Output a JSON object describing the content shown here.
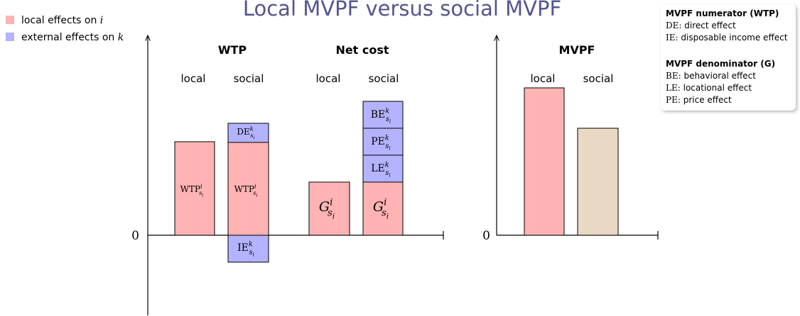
{
  "title": "Local MVPF versus social MVPF",
  "legend": [
    {
      "text": "local effects on",
      "var": "i"
    },
    {
      "text": "external effects on",
      "var": "k"
    }
  ],
  "groups": [
    {
      "title": "WTP",
      "columns": [
        "local",
        "social"
      ]
    },
    {
      "title": "Net cost",
      "columns": [
        "local",
        "social"
      ]
    },
    {
      "title": "MVPF",
      "columns": [
        "local",
        "social"
      ]
    }
  ],
  "axis_zero": [
    "0",
    "0"
  ],
  "boxes": {
    "wtp_local": {
      "base": "WTP",
      "sup": "i",
      "sub": "s",
      "subsub": "i"
    },
    "wtp_social": {
      "base": "WTP",
      "sup": "i",
      "sub": "s",
      "subsub": "i"
    },
    "de": {
      "base": "DE",
      "sup": "k",
      "sub": "s",
      "subsub": "i"
    },
    "ie": {
      "base": "IE",
      "sup": "k",
      "sub": "s",
      "subsub": "i"
    },
    "g_local": {
      "base": "G",
      "sup": "i",
      "sub": "s",
      "subsub": "i"
    },
    "g_social": {
      "base": "G",
      "sup": "i",
      "sub": "s",
      "subsub": "i"
    },
    "le": {
      "base": "LE",
      "sup": "k",
      "sub": "s",
      "subsub": "i"
    },
    "pe": {
      "base": "PE",
      "sup": "k",
      "sub": "s",
      "subsub": "i"
    },
    "be": {
      "base": "BE",
      "sup": "k",
      "sub": "s",
      "subsub": "i"
    }
  },
  "info": {
    "numerator": {
      "heading": "MVPF numerator (WTP)",
      "items": [
        {
          "abbr": "DE:",
          "text": "direct effect"
        },
        {
          "abbr": "IE:",
          "text": "disposable income effect"
        }
      ]
    },
    "denominator": {
      "heading": "MVPF denominator (G)",
      "items": [
        {
          "abbr": "BE:",
          "text": "behavioral effect"
        },
        {
          "abbr": "LE:",
          "text": "locational effect"
        },
        {
          "abbr": "PE:",
          "text": "price effect"
        }
      ]
    }
  }
}
